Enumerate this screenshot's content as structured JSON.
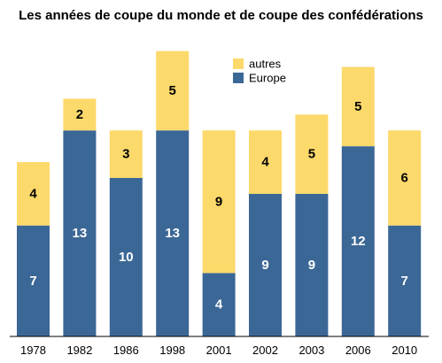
{
  "chart_data": {
    "type": "bar",
    "stacked": true,
    "title": "Les années de coupe du monde et de coupe des confédérations",
    "xlabel": "",
    "ylabel": "",
    "ylim": [
      0,
      18.6
    ],
    "grid": false,
    "legend_position": "top-center",
    "categories": [
      "1978",
      "1982",
      "1986",
      "1998",
      "2001",
      "2002",
      "2003",
      "2006",
      "2010"
    ],
    "series": [
      {
        "name": "Europe",
        "color": "#3b6796",
        "label_color": "#ffffff",
        "values": [
          7,
          13,
          10,
          13,
          4,
          9,
          9,
          12,
          7
        ]
      },
      {
        "name": "autres",
        "color": "#fcd96b",
        "label_color": "#000000",
        "values": [
          4,
          2,
          3,
          5,
          9,
          4,
          5,
          5,
          6
        ]
      }
    ],
    "legend_order": [
      "autres",
      "Europe"
    ]
  }
}
